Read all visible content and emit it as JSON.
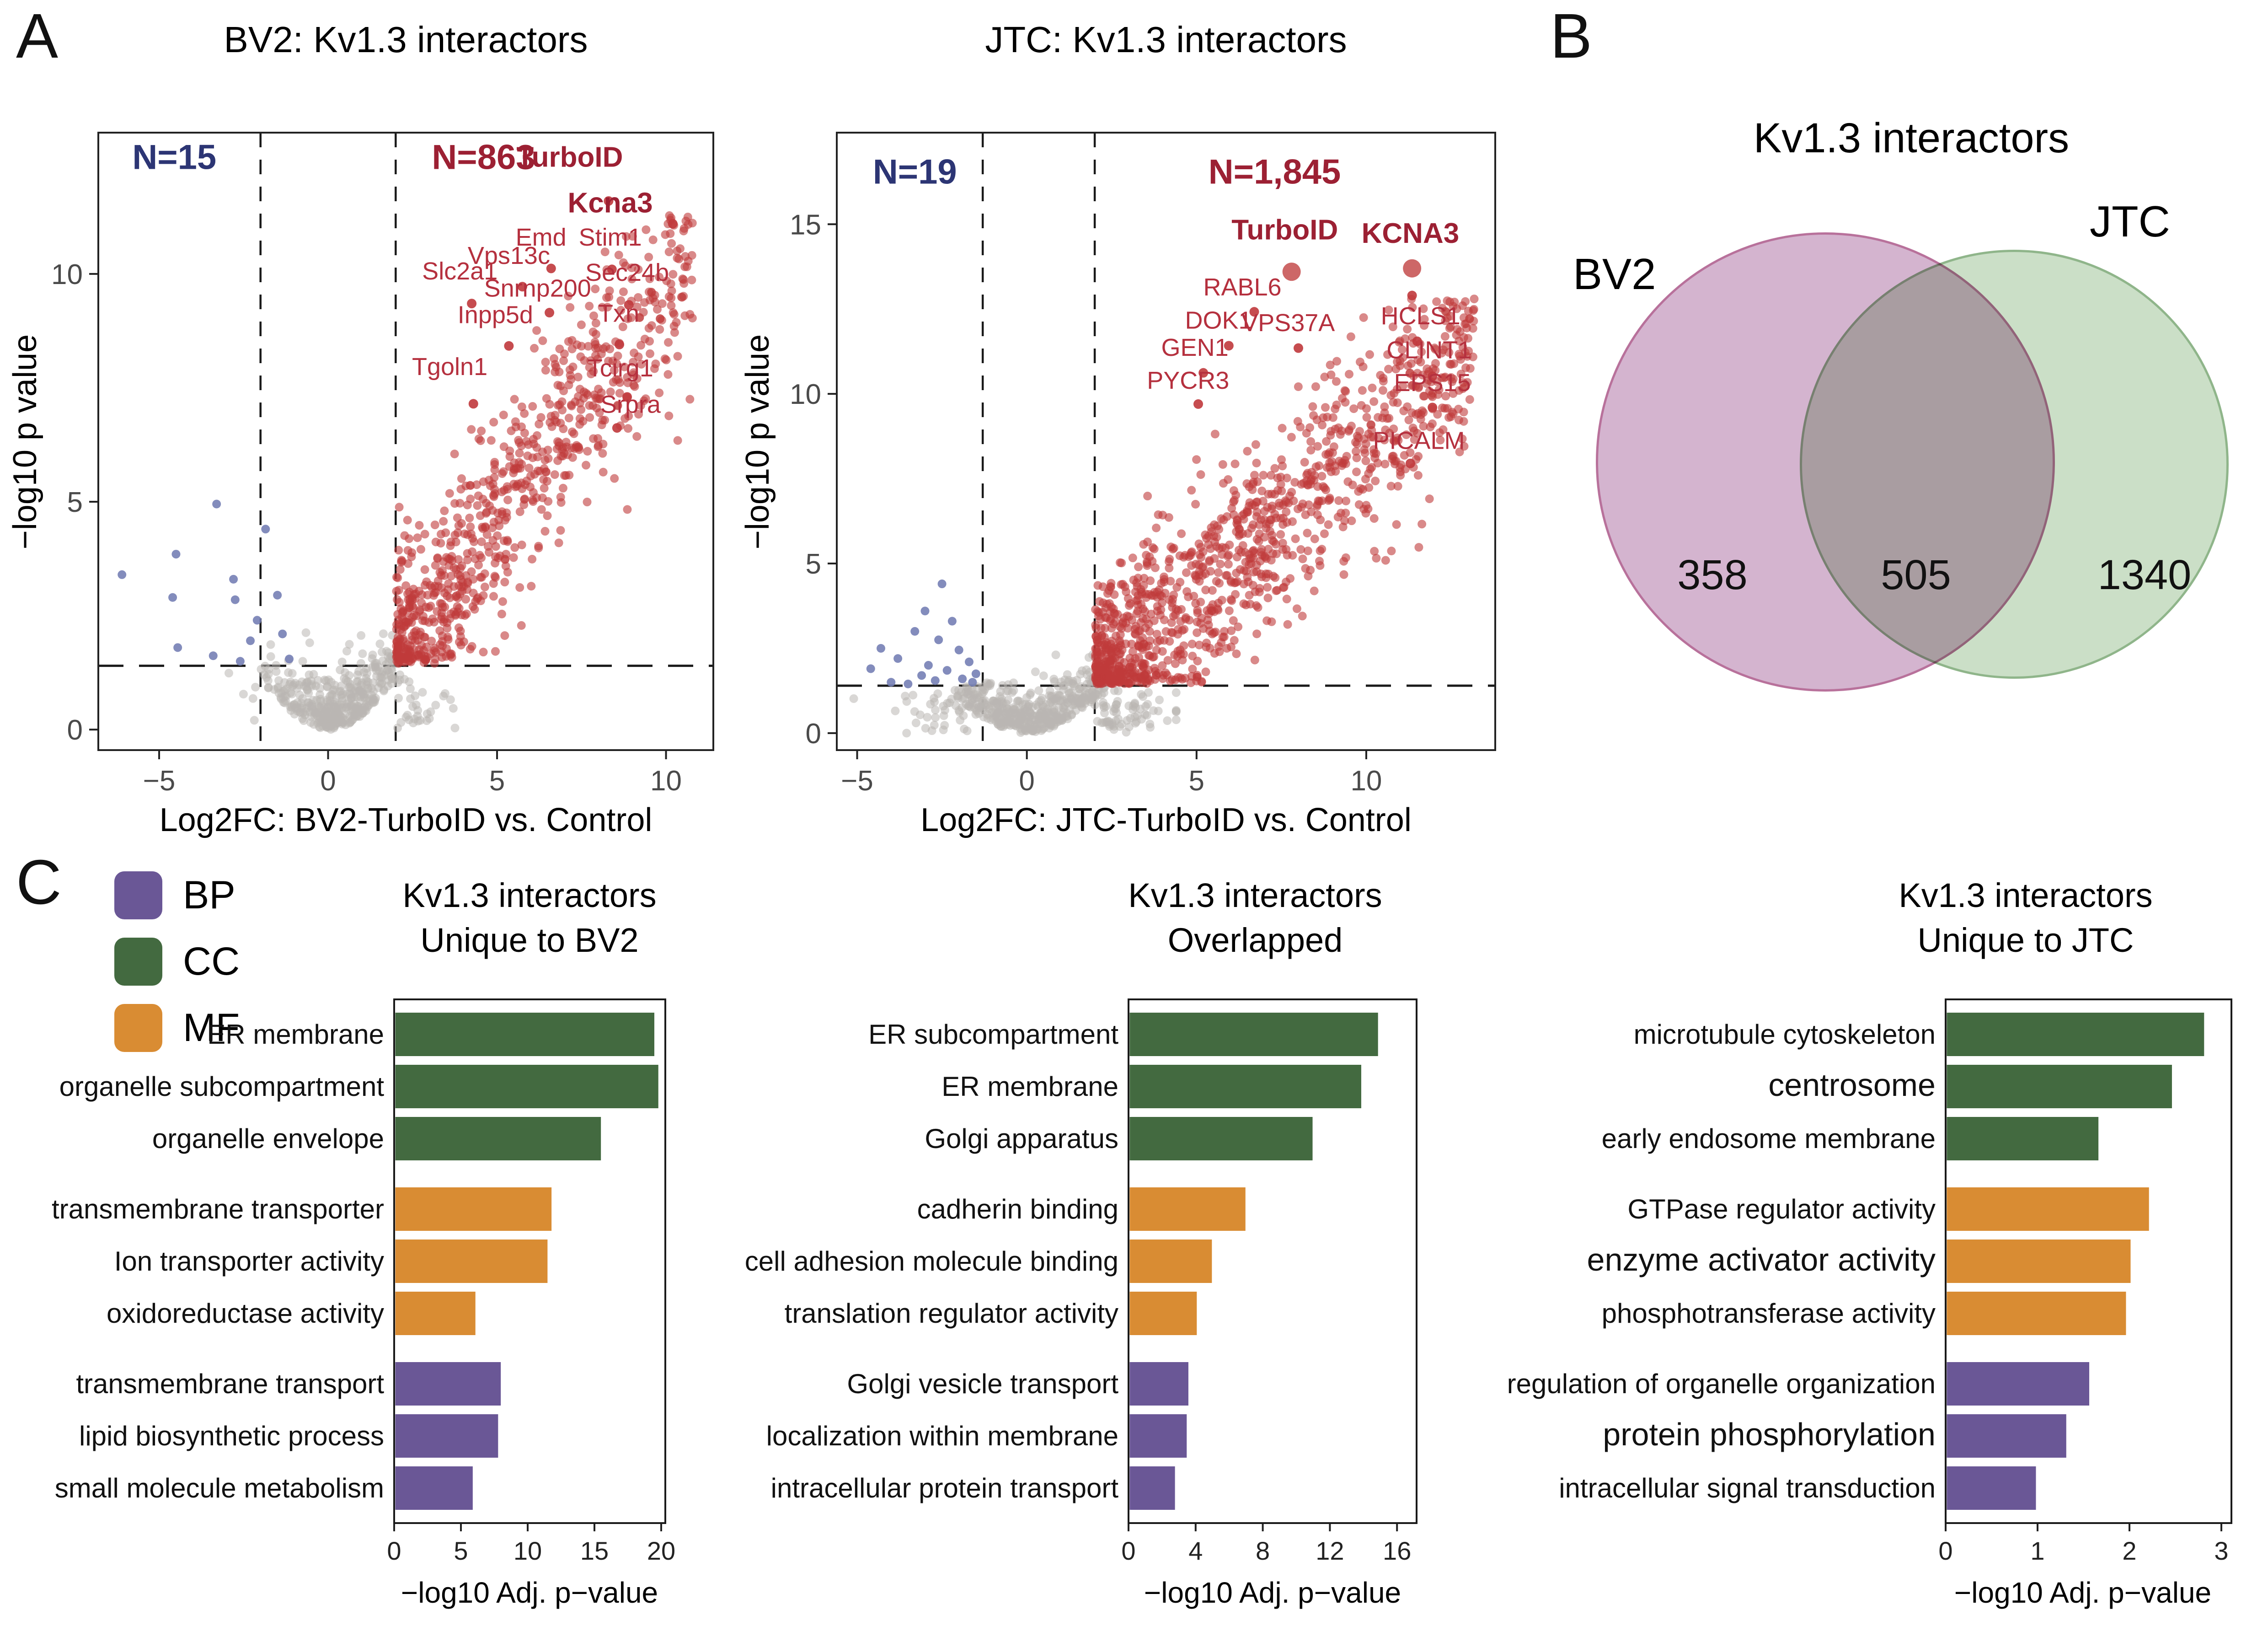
{
  "figure": {
    "panel_a": "A",
    "panel_b": "B",
    "panel_c": "C"
  },
  "legend": {
    "items": [
      {
        "label": "BP",
        "color": "#6a5796"
      },
      {
        "label": "CC",
        "color": "#436a40"
      },
      {
        "label": "MF",
        "color": "#d98c33"
      }
    ]
  },
  "group_colors": {
    "BP": "#6a5796",
    "CC": "#436a40",
    "MF": "#d98c33"
  },
  "chart_data": [
    {
      "type": "scatter",
      "variant": "volcano",
      "title": "BV2: Kv1.3 interactors",
      "xlabel": "Log2FC: BV2-TurboID vs. Control",
      "ylabel": "−log10 p value",
      "xlim": [
        -6.8,
        11.4
      ],
      "ylim": [
        -0.45,
        13.1
      ],
      "xticks": [
        -5,
        0,
        5,
        10
      ],
      "xtick_labels": [
        "−5",
        "0",
        "5",
        "10"
      ],
      "yticks": [
        0,
        5,
        10
      ],
      "ytick_labels": [
        "0",
        "5",
        "10"
      ],
      "thresholds": {
        "x": [
          -2,
          2
        ],
        "y": 1.4
      },
      "annotations": [
        {
          "text": "N=15",
          "x": -4.55,
          "y": 12.3,
          "color": "#2c3574"
        },
        {
          "text": "N=863",
          "x": 4.6,
          "y": 12.3,
          "color": "#9c2033"
        }
      ],
      "point_colors": {
        "up": "#c03a3a",
        "down": "#7580b5",
        "ns": "#b9b6b3"
      },
      "labeled_points": [
        {
          "gene": "TurboID",
          "bold": true,
          "dot": [
            8.3,
            11.6
          ],
          "label": [
            7.15,
            12.35
          ]
        },
        {
          "gene": "Kcna3",
          "bold": true,
          "dot": [
            10.2,
            11.1
          ],
          "label": [
            8.35,
            11.35
          ]
        },
        {
          "gene": "Emd",
          "dot": [
            6.6,
            10.12
          ],
          "label": [
            6.3,
            10.62
          ]
        },
        {
          "gene": "Stim1",
          "dot": [
            8.4,
            10.1
          ],
          "label": [
            8.35,
            10.62
          ]
        },
        {
          "gene": "Vps13c",
          "dot": [
            5.75,
            9.72
          ],
          "label": [
            5.35,
            10.22
          ]
        },
        {
          "gene": "Slc2a1",
          "dot": [
            4.25,
            9.35
          ],
          "label": [
            3.9,
            9.88
          ]
        },
        {
          "gene": "Snrnp200",
          "dot": [
            6.55,
            9.15
          ],
          "label": [
            6.2,
            9.5
          ]
        },
        {
          "gene": "Sec24b",
          "dot": [
            8.9,
            9.32
          ],
          "label": [
            8.85,
            9.85
          ]
        },
        {
          "gene": "Inpp5d",
          "dot": [
            5.35,
            8.42
          ],
          "label": [
            4.95,
            8.92
          ]
        },
        {
          "gene": "Txn",
          "dot": [
            8.62,
            8.45
          ],
          "label": [
            8.6,
            8.95
          ]
        },
        {
          "gene": "Tgoln1",
          "dot": [
            4.3,
            7.15
          ],
          "label": [
            3.6,
            7.78
          ]
        },
        {
          "gene": "Tcirg1",
          "dot": [
            8.85,
            7.3
          ],
          "label": [
            8.65,
            7.75
          ]
        },
        {
          "gene": "Srpra",
          "dot": [
            8.55,
            6.62
          ],
          "label": [
            8.95,
            6.95
          ]
        }
      ],
      "extra_points": [],
      "sim": {
        "seed": 7,
        "red": {
          "n": 780,
          "x0": 2.02,
          "spread": 8.8,
          "pow": 1.45,
          "slope": 1.02,
          "sd": 1.15,
          "ymax": 11.4,
          "xmax": 10.9
        },
        "gray": {
          "n": 430,
          "cx": 0.45,
          "sx": 1.15,
          "xmin": -3.7,
          "xmax": 3.9,
          "a": 0.32,
          "p": 1.8,
          "sy": 0.55,
          "ymax": 4.3
        },
        "blue_points": [
          [
            -3.3,
            4.95
          ],
          [
            -1.85,
            4.4
          ],
          [
            -4.5,
            3.85
          ],
          [
            -2.8,
            3.3
          ],
          [
            -2.75,
            2.85
          ],
          [
            -4.6,
            2.9
          ],
          [
            -2.1,
            2.4
          ],
          [
            -1.5,
            2.95
          ],
          [
            -4.45,
            1.8
          ],
          [
            -2.6,
            1.5
          ],
          [
            -1.15,
            1.55
          ],
          [
            -3.4,
            1.62
          ],
          [
            -6.1,
            3.4
          ],
          [
            -1.35,
            2.1
          ],
          [
            -2.3,
            1.95
          ]
        ]
      }
    },
    {
      "type": "scatter",
      "variant": "volcano",
      "title": "JTC: Kv1.3 interactors",
      "xlabel": "Log2FC: JTC-TurboID vs. Control",
      "ylabel": "−log10 p value",
      "xlim": [
        -5.6,
        13.8
      ],
      "ylim": [
        -0.5,
        17.7
      ],
      "xticks": [
        -5,
        0,
        5,
        10
      ],
      "xtick_labels": [
        "−5",
        "0",
        "5",
        "10"
      ],
      "yticks": [
        0,
        5,
        10,
        15
      ],
      "ytick_labels": [
        "0",
        "5",
        "10",
        "15"
      ],
      "thresholds": {
        "x": [
          -1.3,
          2
        ],
        "y": 1.4
      },
      "annotations": [
        {
          "text": "N=19",
          "x": -3.3,
          "y": 16.2,
          "color": "#2c3574"
        },
        {
          "text": "N=1,845",
          "x": 7.3,
          "y": 16.2,
          "color": "#9c2033"
        }
      ],
      "point_colors": {
        "up": "#c03a3a",
        "down": "#7580b5",
        "ns": "#b9b6b3"
      },
      "labeled_points": [
        {
          "gene": "TurboID",
          "bold": true,
          "big": true,
          "dot": [
            7.8,
            13.6
          ],
          "label": [
            7.6,
            14.55
          ]
        },
        {
          "gene": "KCNA3",
          "bold": true,
          "big": true,
          "dot": [
            11.35,
            13.7
          ],
          "label": [
            11.3,
            14.45
          ]
        },
        {
          "gene": "RABL6",
          "dot": [
            6.7,
            12.42
          ],
          "label": [
            6.35,
            12.9
          ]
        },
        {
          "gene": "HCLS1",
          "dot": [
            11.5,
            11.55
          ],
          "label": [
            11.6,
            12.05
          ]
        },
        {
          "gene": "DOK1",
          "dot": [
            5.95,
            11.42
          ],
          "label": [
            5.65,
            11.92
          ]
        },
        {
          "gene": "VPS37A",
          "dot": [
            8.0,
            11.35
          ],
          "label": [
            7.7,
            11.85
          ]
        },
        {
          "gene": "GEN1",
          "dot": [
            5.2,
            10.62
          ],
          "label": [
            4.95,
            11.12
          ]
        },
        {
          "gene": "CLINT1",
          "dot": [
            11.95,
            10.52
          ],
          "label": [
            11.85,
            11.05
          ]
        },
        {
          "gene": "PYCR3",
          "dot": [
            5.05,
            9.7
          ],
          "label": [
            4.75,
            10.15
          ]
        },
        {
          "gene": "EPS15",
          "dot": [
            11.95,
            9.6
          ],
          "label": [
            11.95,
            10.08
          ]
        },
        {
          "gene": "PICALM",
          "dot": [
            11.3,
            7.95
          ],
          "label": [
            11.55,
            8.38
          ]
        }
      ],
      "extra_points": [
        [
          11.35,
          12.9
        ]
      ],
      "sim": {
        "seed": 11,
        "red": {
          "n": 1150,
          "x0": 2.02,
          "spread": 11.2,
          "pow": 1.6,
          "slope": 0.88,
          "sd": 1.5,
          "ymax": 12.8,
          "xmax": 13.4
        },
        "gray": {
          "n": 520,
          "cx": 0.25,
          "sx": 1.45,
          "xmin": -5.1,
          "xmax": 4.4,
          "a": 0.3,
          "p": 1.75,
          "sy": 0.6,
          "ymax": 4.6
        },
        "blue_points": [
          [
            -2.5,
            4.4
          ],
          [
            -3.0,
            3.6
          ],
          [
            -2.2,
            3.3
          ],
          [
            -3.3,
            3.0
          ],
          [
            -2.6,
            2.75
          ],
          [
            -4.3,
            2.5
          ],
          [
            -2.0,
            2.45
          ],
          [
            -3.8,
            2.2
          ],
          [
            -1.7,
            2.1
          ],
          [
            -2.9,
            2.0
          ],
          [
            -4.6,
            1.9
          ],
          [
            -2.35,
            1.85
          ],
          [
            -1.5,
            1.75
          ],
          [
            -3.1,
            1.7
          ],
          [
            -1.9,
            1.6
          ],
          [
            -2.7,
            1.55
          ],
          [
            -4.0,
            1.5
          ],
          [
            -1.6,
            1.5
          ],
          [
            -3.5,
            1.45
          ]
        ]
      }
    },
    {
      "type": "venn",
      "title": "Kv1.3 interactors",
      "sets": [
        {
          "label": "BV2",
          "value": 358,
          "fill": "#d4b4cf",
          "border": "#b8719b"
        },
        {
          "label": "JTC",
          "value": 1340,
          "fill": "#cbdfc7",
          "border": "#8fb58a"
        }
      ],
      "overlap": 505
    },
    {
      "type": "bar",
      "orientation": "horizontal",
      "title_line1": "Kv1.3 interactors",
      "title_line2": "Unique to BV2",
      "xlabel": "−log10 Adj. p−value",
      "xlim": [
        0,
        20
      ],
      "xticks": [
        0,
        5,
        10,
        15,
        20
      ],
      "rows": [
        {
          "label": "ER membrane",
          "group": "CC",
          "value": 19.4
        },
        {
          "label": "organelle subcompartment",
          "group": "CC",
          "value": 19.7
        },
        {
          "label": "organelle envelope",
          "group": "CC",
          "value": 15.4
        },
        {
          "label": "transmembrane transporter",
          "group": "MF",
          "value": 11.7
        },
        {
          "label": "Ion transporter activity",
          "group": "MF",
          "value": 11.4
        },
        {
          "label": "oxidoreductase activity",
          "group": "MF",
          "value": 6.0
        },
        {
          "label": "transmembrane transport",
          "group": "BP",
          "value": 7.9
        },
        {
          "label": "lipid biosynthetic process",
          "group": "BP",
          "value": 7.7
        },
        {
          "label": "small molecule metabolism",
          "group": "BP",
          "value": 5.8
        }
      ]
    },
    {
      "type": "bar",
      "orientation": "horizontal",
      "title_line1": "Kv1.3 interactors",
      "title_line2": "Overlapped",
      "xlabel": "−log10 Adj. p−value",
      "xlim": [
        0,
        16
      ],
      "xticks": [
        0,
        4,
        8,
        12,
        16
      ],
      "rows": [
        {
          "label": "ER subcompartment",
          "group": "CC",
          "value": 14.8
        },
        {
          "label": "ER membrane",
          "group": "CC",
          "value": 13.8
        },
        {
          "label": "Golgi apparatus",
          "group": "CC",
          "value": 10.9
        },
        {
          "label": "cadherin binding",
          "group": "MF",
          "value": 6.9
        },
        {
          "label": "cell adhesion molecule binding",
          "group": "MF",
          "value": 4.9
        },
        {
          "label": "translation regulator activity",
          "group": "MF",
          "value": 4.0
        },
        {
          "label": "Golgi vesicle transport",
          "group": "BP",
          "value": 3.5
        },
        {
          "label": "localization within membrane",
          "group": "BP",
          "value": 3.4
        },
        {
          "label": "intracellular protein transport",
          "group": "BP",
          "value": 2.7
        }
      ]
    },
    {
      "type": "bar",
      "orientation": "horizontal",
      "title_line1": "Kv1.3 interactors",
      "title_line2": "Unique to JTC",
      "xlabel": "−log10 Adj. p−value",
      "xlim": [
        0,
        3
      ],
      "xticks": [
        0,
        1,
        2,
        3
      ],
      "rows": [
        {
          "label": "microtubule cytoskeleton",
          "group": "CC",
          "value": 2.8
        },
        {
          "label": "centrosome",
          "group": "CC",
          "value": 2.45,
          "emph": true
        },
        {
          "label": "early endosome membrane",
          "group": "CC",
          "value": 1.65
        },
        {
          "label": "GTPase regulator activity",
          "group": "MF",
          "value": 2.2
        },
        {
          "label": "enzyme activator activity",
          "group": "MF",
          "value": 2.0,
          "emph": true
        },
        {
          "label": "phosphotransferase activity",
          "group": "MF",
          "value": 1.95
        },
        {
          "label": "regulation of organelle organization",
          "group": "BP",
          "value": 1.55
        },
        {
          "label": "protein phosphorylation",
          "group": "BP",
          "value": 1.3,
          "emph": true
        },
        {
          "label": "intracellular signal transduction",
          "group": "BP",
          "value": 0.97
        }
      ]
    }
  ]
}
